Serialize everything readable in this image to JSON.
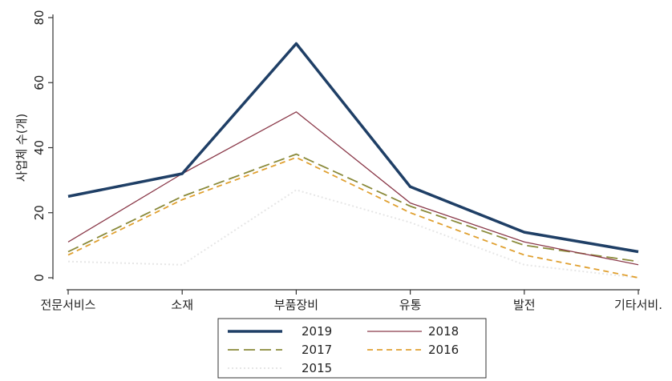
{
  "chart_data": {
    "type": "line",
    "title": "",
    "xlabel": "",
    "ylabel": "사업체 수(개)",
    "categories": [
      "전문서비스",
      "소재",
      "부품장비",
      "유통",
      "발전",
      "기타서비스"
    ],
    "category_labels_shown": [
      "전문서비스",
      "소재",
      "부품장비",
      "유통",
      "발전",
      "기타서비."
    ],
    "ylim": [
      0,
      80
    ],
    "yticks": [
      "0",
      "20",
      "40",
      "60",
      "80"
    ],
    "grid": false,
    "legend_placement": "bottom",
    "series": [
      {
        "name": "2019",
        "values": [
          25,
          32,
          72,
          28,
          14,
          8
        ],
        "color": "#1f3f66",
        "style": "solid-thick"
      },
      {
        "name": "2018",
        "values": [
          11,
          32,
          51,
          23,
          11,
          4
        ],
        "color": "#8b3a4a",
        "style": "solid-thin"
      },
      {
        "name": "2017",
        "values": [
          8,
          25,
          38,
          22,
          10,
          5
        ],
        "color": "#8a8a3a",
        "style": "long-dash"
      },
      {
        "name": "2016",
        "values": [
          7,
          24,
          37,
          20,
          7,
          0
        ],
        "color": "#e0a030",
        "style": "short-dash"
      },
      {
        "name": "2015",
        "values": [
          5,
          4,
          27,
          17,
          4,
          0
        ],
        "color": "#e6e6e6",
        "style": "dotted"
      }
    ]
  }
}
